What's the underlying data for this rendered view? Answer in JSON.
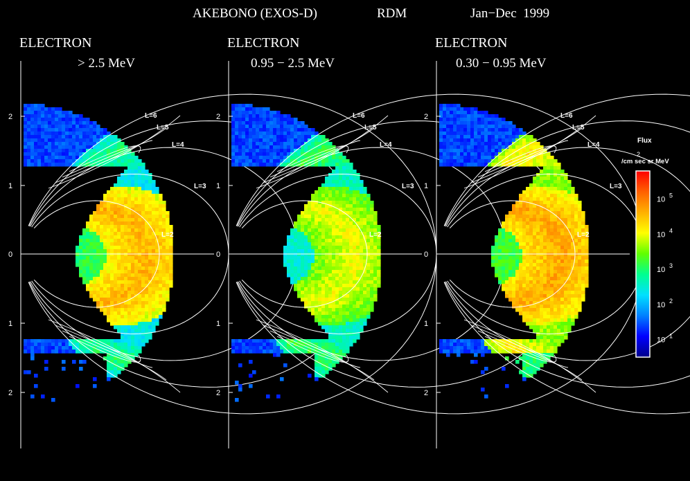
{
  "header": {
    "satellite": "AKEBONO (EXOS-D)",
    "instrument": "RDM",
    "period": "Jan−Dec  1999"
  },
  "chart_data": [
    {
      "type": "heatmap",
      "species": "ELECTRON",
      "energy": "> 2.5 MeV",
      "y_ticks": [
        "2",
        "1",
        "0",
        "1",
        "2"
      ],
      "l_shells": [
        "L=6",
        "L=5",
        "L=4",
        "L=3",
        "L=2"
      ],
      "peak_log_flux": 4.6,
      "outer_belt_log_flux": 3.0
    },
    {
      "type": "heatmap",
      "species": "ELECTRON",
      "energy": "0.95 − 2.5 MeV",
      "y_ticks": [
        "2",
        "1",
        "0",
        "1",
        "2"
      ],
      "l_shells": [
        "L=6",
        "L=5",
        "L=4",
        "L=3",
        "L=2"
      ],
      "peak_log_flux": 4.0,
      "outer_belt_log_flux": 3.2
    },
    {
      "type": "heatmap",
      "species": "ELECTRON",
      "energy": "0.30 − 0.95 MeV",
      "y_ticks": [
        "2",
        "1",
        "0",
        "1",
        "2"
      ],
      "l_shells": [
        "L=6",
        "L=5",
        "L=4",
        "L=3",
        "L=2"
      ],
      "peak_log_flux": 4.7,
      "outer_belt_log_flux": 4.2
    }
  ],
  "colorbar": {
    "title": "Flux",
    "unit_prefix": "/cm",
    "unit_exp": "2",
    "unit_suffix": " sec sr MeV",
    "ticks": [
      {
        "base": "10",
        "exp": "5",
        "value": 5
      },
      {
        "base": "10",
        "exp": "4",
        "value": 4
      },
      {
        "base": "10",
        "exp": "3",
        "value": 3
      },
      {
        "base": "10",
        "exp": "2",
        "value": 2
      },
      {
        "base": "10",
        "exp": "1",
        "value": 1
      }
    ],
    "range": [
      0.5,
      5.8
    ],
    "colors": [
      "#00008a",
      "#0000ff",
      "#0080ff",
      "#00e0ff",
      "#00ff90",
      "#60ff00",
      "#ffff00",
      "#ffb000",
      "#ff6000",
      "#ff0000"
    ]
  }
}
